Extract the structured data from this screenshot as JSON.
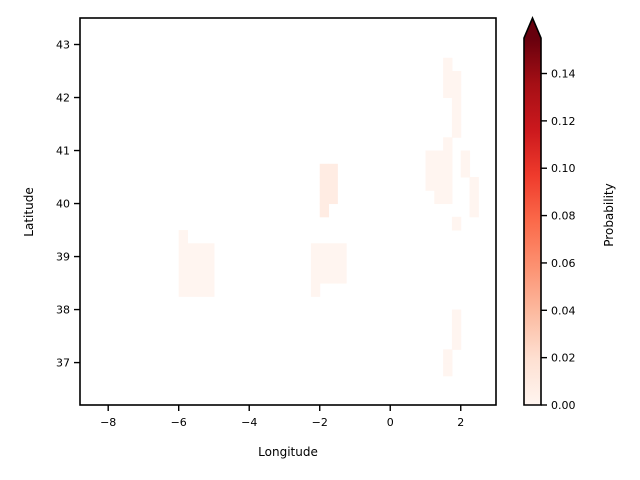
{
  "chart_data": {
    "type": "heatmap",
    "title": "",
    "xlabel": "Longitude",
    "ylabel": "Latitude",
    "xlim": [
      -8.8,
      3.0
    ],
    "ylim": [
      36.2,
      43.5
    ],
    "xticks": [
      -8,
      -6,
      -4,
      -2,
      0,
      2
    ],
    "xtick_labels": [
      "−8",
      "−6",
      "−4",
      "−2",
      "0",
      "2"
    ],
    "yticks": [
      37,
      38,
      39,
      40,
      41,
      42,
      43
    ],
    "ytick_labels": [
      "37",
      "38",
      "39",
      "40",
      "41",
      "42",
      "43"
    ],
    "colorbar": {
      "label": "Probability",
      "colormap": "Reds",
      "range": [
        0.0,
        0.155
      ],
      "extend": "max",
      "ticks": [
        0.0,
        0.02,
        0.04,
        0.06,
        0.08,
        0.1,
        0.12,
        0.14
      ],
      "tick_labels": [
        "0.00",
        "0.02",
        "0.04",
        "0.06",
        "0.08",
        "0.10",
        "0.12",
        "0.14"
      ]
    },
    "grid": false,
    "cell_size_deg": 0.25,
    "lon0": -8.75,
    "lat0": 36.25,
    "grid_rows_south_to_north": [
      "..............................................",
      "..............................................",
      ".........................................!....",
      ".........................................!....",
      "..........................................!...",
      "..........................................!...",
      "..........................................!...",
      "..............................................",
      "...........!!!!...........!...................",
      "...........!!!!...........!!!!................",
      "...........!!!!...........!!!!................",
      "...........!!!!...........!!!!................",
      "...........!..................................",
      "..........................................!...",
      "...........................#................!.",
      "...........................##...........!!..!.",
      "...........................##..........!!!..!.",
      "...........................##..........!!!.!..",
      ".......................................!!!.!...",
      ".........................................!....",
      "..........................................!...",
      "..........................................!...",
      "..........................................!...",
      ".........................................!!...",
      ".........................................!!...",
      ".........................................!....",
      "..............................................",
      "..............................................",
      "..............................................",
      "..............................................",
      "..............................................",
      "..............................................",
      "..............................................",
      "..............................................",
      ".......................................!!.....",
      "......................................!!!.....",
      ".....................................!!!......",
      "......................................!.......",
      "......................................!.......",
      ".......................................!......",
      "..............................................",
      "..............................................",
      "..............................................",
      "..............................................",
      "..............................................",
      ".............................................."
    ]
  }
}
